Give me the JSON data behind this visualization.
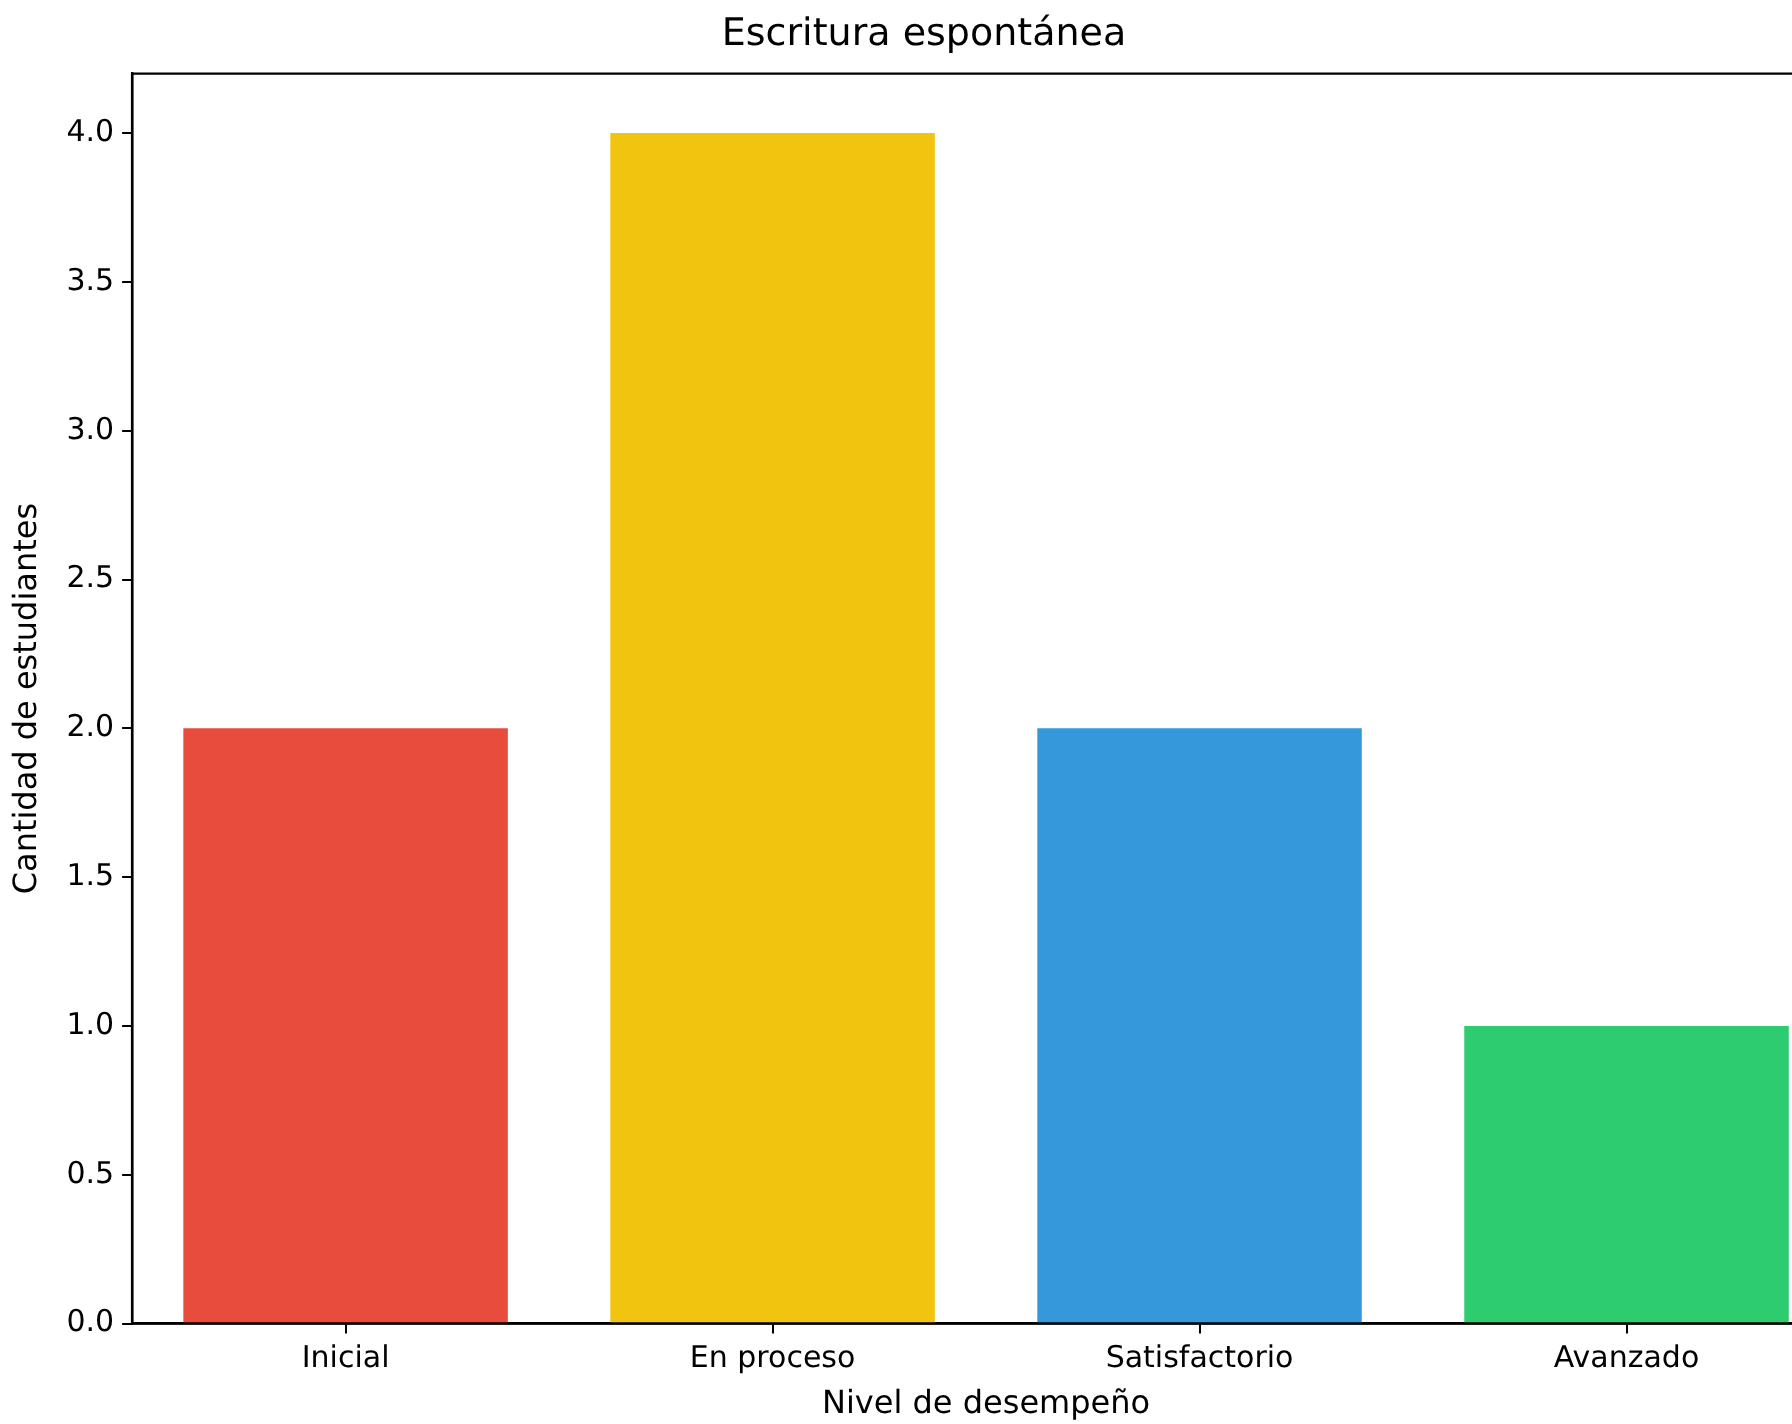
{
  "chart_data": {
    "type": "bar",
    "title": "Escritura espontánea",
    "xlabel": "Nivel de desempeño",
    "ylabel": "Cantidad de estudiantes",
    "categories": [
      "Inicial",
      "En proceso",
      "Satisfactorio",
      "Avanzado"
    ],
    "values": [
      2,
      4,
      2,
      1
    ],
    "colors": [
      "#e74c3c",
      "#f1c40f",
      "#3498db",
      "#2ecc71"
    ],
    "ylim": [
      0,
      4.2
    ],
    "yticks": [
      {
        "value": 0,
        "label": "0.0"
      },
      {
        "value": 0.5,
        "label": "0.5"
      },
      {
        "value": 1,
        "label": "1.0"
      },
      {
        "value": 1.5,
        "label": "1.5"
      },
      {
        "value": 2,
        "label": "2.0"
      },
      {
        "value": 2.5,
        "label": "2.5"
      },
      {
        "value": 3,
        "label": "3.0"
      },
      {
        "value": 3.5,
        "label": "3.5"
      },
      {
        "value": 4,
        "label": "4.0"
      }
    ],
    "grid": false
  }
}
